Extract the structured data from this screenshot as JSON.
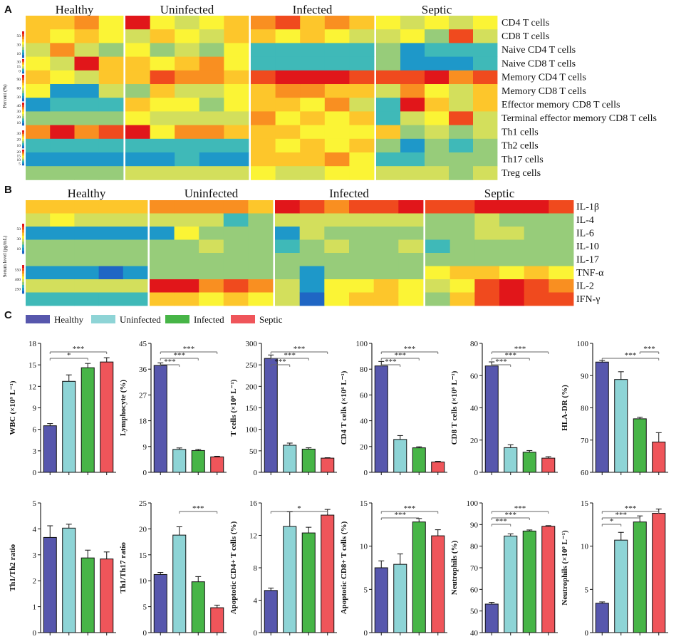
{
  "panels": {
    "a": "A",
    "b": "B",
    "c": "C"
  },
  "colors": {
    "healthy": "#5757ad",
    "uninfected": "#8ed4d6",
    "infected": "#47b547",
    "septic": "#ef555a"
  },
  "legend": [
    "Healthy",
    "Uninfected",
    "Infected",
    "Septic"
  ],
  "heatmap_palette": [
    "#1f66c4",
    "#1e98c9",
    "#3fb9b8",
    "#97cc7a",
    "#d3df5c",
    "#fbf435",
    "#fdc62b",
    "#f98f21",
    "#f04a1e",
    "#e1161a"
  ],
  "heatmap_a": {
    "groups": [
      "Healthy",
      "Uninfected",
      "Infected",
      "Septic"
    ],
    "rows": [
      "CD4 T cells",
      "CD8 T cells",
      "Naive CD4 T cells",
      "Naive CD8 T cells",
      "Memory CD4 T cells",
      "Memory CD8 T cells",
      "Effector memory CD8 T cells",
      "Terminal effector memory CD8 T cells",
      "Th1 cells",
      "Th2 cells",
      "Th17 cells",
      "Treg cells"
    ],
    "scale_title": "Percent (%)",
    "scale_ticks": [
      [
        "50",
        "30",
        "10"
      ],
      [
        "30",
        "15",
        "0"
      ],
      [
        "90",
        "60",
        "30"
      ],
      [
        "40",
        "30",
        "20",
        "10"
      ],
      [
        "30",
        "20",
        "10"
      ],
      [
        "20",
        "15",
        "10",
        "5"
      ]
    ],
    "values": [
      [
        6,
        6,
        7,
        5,
        9,
        5,
        4,
        5,
        6,
        7,
        8,
        6,
        7,
        6,
        5,
        4,
        5,
        4,
        5
      ],
      [
        6,
        5,
        6,
        5,
        4,
        6,
        5,
        4,
        6,
        6,
        5,
        6,
        5,
        4,
        4,
        5,
        3,
        8,
        4
      ],
      [
        4,
        7,
        4,
        3,
        5,
        3,
        4,
        3,
        5,
        2,
        2,
        2,
        2,
        2,
        3,
        1,
        2,
        2,
        2
      ],
      [
        5,
        4,
        9,
        6,
        6,
        5,
        6,
        7,
        5,
        2,
        2,
        2,
        2,
        2,
        3,
        1,
        1,
        1,
        2
      ],
      [
        6,
        5,
        4,
        6,
        6,
        8,
        7,
        7,
        6,
        8,
        9,
        9,
        9,
        8,
        8,
        8,
        9,
        7,
        8
      ],
      [
        5,
        1,
        1,
        4,
        3,
        6,
        4,
        4,
        5,
        6,
        7,
        7,
        6,
        6,
        4,
        7,
        5,
        4,
        6
      ],
      [
        1,
        2,
        2,
        2,
        6,
        5,
        5,
        3,
        5,
        6,
        6,
        5,
        7,
        4,
        2,
        9,
        6,
        4,
        6
      ],
      [
        3,
        3,
        3,
        3,
        5,
        4,
        4,
        4,
        4,
        7,
        5,
        6,
        5,
        6,
        2,
        4,
        5,
        8,
        4
      ],
      [
        7,
        9,
        7,
        8,
        9,
        5,
        7,
        7,
        6,
        6,
        6,
        5,
        5,
        5,
        6,
        3,
        4,
        3,
        4
      ],
      [
        2,
        2,
        2,
        2,
        2,
        2,
        2,
        2,
        2,
        6,
        5,
        6,
        5,
        6,
        3,
        1,
        3,
        2,
        3
      ],
      [
        1,
        1,
        1,
        1,
        1,
        1,
        2,
        1,
        1,
        6,
        6,
        6,
        7,
        5,
        2,
        2,
        3,
        3,
        3
      ],
      [
        3,
        3,
        3,
        3,
        4,
        4,
        4,
        4,
        4,
        5,
        4,
        4,
        5,
        5,
        4,
        4,
        4,
        3,
        4
      ]
    ]
  },
  "heatmap_b": {
    "groups": [
      "Healthy",
      "Uninfected",
      "Infected",
      "Septic"
    ],
    "rows": [
      "IL-1β",
      "IL-4",
      "IL-6",
      "IL-10",
      "IL-17",
      "TNF-α",
      "IL-2",
      "IFN-γ"
    ],
    "scale_title": "Serum level (pg/mL)",
    "scale_ticks": [
      [
        "50",
        "30",
        "10"
      ],
      [
        "550",
        "400",
        "250"
      ]
    ],
    "values": [
      [
        6,
        6,
        6,
        6,
        6,
        7,
        7,
        7,
        7,
        6,
        9,
        8,
        7,
        8,
        8,
        9,
        8,
        8,
        9,
        9,
        9,
        8
      ],
      [
        4,
        5,
        4,
        4,
        4,
        4,
        4,
        4,
        2,
        3,
        4,
        4,
        4,
        4,
        4,
        4,
        3,
        3,
        4,
        3,
        3,
        3
      ],
      [
        1,
        1,
        1,
        1,
        1,
        1,
        5,
        3,
        3,
        3,
        1,
        4,
        3,
        3,
        3,
        3,
        3,
        3,
        4,
        4,
        3,
        3
      ],
      [
        3,
        3,
        3,
        3,
        3,
        3,
        3,
        4,
        3,
        3,
        2,
        3,
        4,
        3,
        3,
        4,
        2,
        3,
        3,
        3,
        3,
        3
      ],
      [
        3,
        3,
        3,
        3,
        3,
        3,
        3,
        3,
        3,
        3,
        3,
        3,
        3,
        3,
        3,
        3,
        3,
        3,
        3,
        3,
        3,
        3
      ],
      [
        1,
        1,
        1,
        0,
        1,
        3,
        3,
        3,
        3,
        3,
        3,
        1,
        3,
        3,
        3,
        3,
        5,
        6,
        6,
        5,
        6,
        5
      ],
      [
        4,
        4,
        4,
        4,
        4,
        9,
        9,
        7,
        8,
        7,
        4,
        1,
        5,
        5,
        6,
        5,
        4,
        5,
        8,
        9,
        8,
        7
      ],
      [
        2,
        2,
        2,
        2,
        2,
        6,
        6,
        5,
        6,
        5,
        4,
        0,
        5,
        6,
        6,
        5,
        3,
        6,
        8,
        9,
        8,
        8
      ]
    ]
  },
  "chart_data": [
    {
      "type": "bar",
      "ylabel": "WBC (×10⁹ L⁻¹)",
      "ylim": [
        0,
        18
      ],
      "yticks": [
        "0",
        "3",
        "6",
        "9",
        "12",
        "15",
        "18"
      ],
      "categories": [
        "Healthy",
        "Uninfected",
        "Infected",
        "Septic"
      ],
      "values": [
        6.5,
        12.7,
        14.6,
        15.4
      ],
      "errors": [
        0.3,
        0.9,
        0.6,
        0.6
      ],
      "sig": [
        {
          "a": 0,
          "b": 2,
          "label": "*"
        },
        {
          "a": 0,
          "b": 3,
          "label": "***"
        }
      ]
    },
    {
      "type": "bar",
      "ylabel": "Lymphocyte (%)",
      "ylim": [
        0,
        45
      ],
      "yticks": [
        "0",
        "9",
        "18",
        "27",
        "36",
        "45"
      ],
      "categories": [
        "Healthy",
        "Uninfected",
        "Infected",
        "Septic"
      ],
      "values": [
        37.3,
        8.0,
        7.6,
        5.4
      ],
      "errors": [
        0.9,
        0.5,
        0.4,
        0.2
      ],
      "sig": [
        {
          "a": 0,
          "b": 1,
          "label": "***"
        },
        {
          "a": 0,
          "b": 2,
          "label": "***"
        },
        {
          "a": 0,
          "b": 3,
          "label": "***"
        }
      ]
    },
    {
      "type": "bar",
      "ylabel": "T cells (×10⁶ L⁻¹)",
      "ylim": [
        0,
        300
      ],
      "yticks": [
        "0",
        "50",
        "100",
        "150",
        "200",
        "250",
        "300"
      ],
      "categories": [
        "Healthy",
        "Uninfected",
        "Infected",
        "Septic"
      ],
      "values": [
        265,
        63,
        54,
        33
      ],
      "errors": [
        8,
        5,
        3,
        1
      ],
      "sig": [
        {
          "a": 0,
          "b": 1,
          "label": "***"
        },
        {
          "a": 0,
          "b": 2,
          "label": "***"
        },
        {
          "a": 0,
          "b": 3,
          "label": "***"
        }
      ]
    },
    {
      "type": "bar",
      "ylabel": "CD4 T cells (×10⁶ L⁻¹)",
      "ylim": [
        0,
        100
      ],
      "yticks": [
        "0",
        "20",
        "40",
        "60",
        "80",
        "100"
      ],
      "categories": [
        "Healthy",
        "Uninfected",
        "Infected",
        "Septic"
      ],
      "values": [
        82.5,
        25.5,
        19.0,
        8.0
      ],
      "errors": [
        3.5,
        3.0,
        0.8,
        0.5
      ],
      "sig": [
        {
          "a": 0,
          "b": 1,
          "label": "***"
        },
        {
          "a": 0,
          "b": 2,
          "label": "***"
        },
        {
          "a": 0,
          "b": 3,
          "label": "***"
        }
      ]
    },
    {
      "type": "bar",
      "ylabel": "CD8 T cells (×10⁶ L⁻¹)",
      "ylim": [
        0,
        80
      ],
      "yticks": [
        "0",
        "20",
        "40",
        "60",
        "80"
      ],
      "categories": [
        "Healthy",
        "Uninfected",
        "Infected",
        "Septic"
      ],
      "values": [
        66,
        15.3,
        12.5,
        8.8
      ],
      "errors": [
        2.5,
        1.8,
        1.0,
        0.9
      ],
      "sig": [
        {
          "a": 0,
          "b": 1,
          "label": "***"
        },
        {
          "a": 0,
          "b": 2,
          "label": "***"
        },
        {
          "a": 0,
          "b": 3,
          "label": "***"
        }
      ]
    },
    {
      "type": "bar",
      "ylabel": "HLA-DR (%)",
      "ylim": [
        60,
        100
      ],
      "yticks": [
        "60",
        "70",
        "80",
        "90",
        "100"
      ],
      "categories": [
        "Healthy",
        "Uninfected",
        "Infected",
        "Septic"
      ],
      "values": [
        94.2,
        88.8,
        76.6,
        69.4
      ],
      "errors": [
        0.5,
        2.4,
        0.5,
        2.9
      ],
      "sig": [
        {
          "a": 0,
          "b": 3,
          "label": "***"
        },
        {
          "a": 2,
          "b": 3,
          "label": "***"
        }
      ]
    },
    {
      "type": "bar",
      "ylabel": "Th1/Th2 ratio",
      "ylim": [
        0,
        5
      ],
      "yticks": [
        "0",
        "1",
        "2",
        "3",
        "4",
        "5"
      ],
      "categories": [
        "Healthy",
        "Uninfected",
        "Infected",
        "Septic"
      ],
      "values": [
        3.67,
        4.03,
        2.88,
        2.84
      ],
      "errors": [
        0.45,
        0.15,
        0.3,
        0.27
      ],
      "sig": []
    },
    {
      "type": "bar",
      "ylabel": "Th1/Th17 ratio",
      "ylim": [
        0,
        25
      ],
      "yticks": [
        "0",
        "5",
        "10",
        "15",
        "20",
        "25"
      ],
      "categories": [
        "Healthy",
        "Uninfected",
        "Infected",
        "Septic"
      ],
      "values": [
        11.2,
        18.8,
        9.8,
        4.8
      ],
      "errors": [
        0.4,
        1.6,
        1.0,
        0.5
      ],
      "sig": [
        {
          "a": 1,
          "b": 3,
          "label": "***"
        }
      ]
    },
    {
      "type": "bar",
      "ylabel": "Apoptotic CD4+ T cells (%)",
      "ylim": [
        0,
        16
      ],
      "yticks": [
        "0",
        "4",
        "8",
        "12",
        "16"
      ],
      "categories": [
        "Healthy",
        "Uninfected",
        "Infected",
        "Septic"
      ],
      "values": [
        5.2,
        13.1,
        12.3,
        14.5
      ],
      "errors": [
        0.3,
        1.8,
        0.7,
        0.7
      ],
      "sig": [
        {
          "a": 0,
          "b": 3,
          "label": "*"
        }
      ]
    },
    {
      "type": "bar",
      "ylabel": "Apoptotic CD8+ T cells (%)",
      "ylim": [
        0,
        15
      ],
      "yticks": [
        "0",
        "5",
        "10",
        "15"
      ],
      "categories": [
        "Healthy",
        "Uninfected",
        "Infected",
        "Septic"
      ],
      "values": [
        7.5,
        7.9,
        12.8,
        11.2
      ],
      "errors": [
        0.8,
        1.2,
        0.4,
        0.7
      ],
      "sig": [
        {
          "a": 0,
          "b": 2,
          "label": "***"
        },
        {
          "a": 0,
          "b": 3,
          "label": "***"
        }
      ]
    },
    {
      "type": "bar",
      "ylabel": "Neutrophils (%)",
      "ylim": [
        40,
        100
      ],
      "yticks": [
        "40",
        "50",
        "60",
        "70",
        "80",
        "90",
        "100"
      ],
      "categories": [
        "Healthy",
        "Uninfected",
        "Infected",
        "Septic"
      ],
      "values": [
        53.2,
        84.7,
        87.0,
        89.2
      ],
      "errors": [
        0.8,
        1.0,
        0.5,
        0.3
      ],
      "sig": [
        {
          "a": 0,
          "b": 1,
          "label": "***"
        },
        {
          "a": 0,
          "b": 2,
          "label": "***"
        },
        {
          "a": 0,
          "b": 3,
          "label": "***"
        }
      ]
    },
    {
      "type": "bar",
      "ylabel": "Neutrophils (×10⁹ L⁻¹)",
      "ylim": [
        0,
        15
      ],
      "yticks": [
        "0",
        "5",
        "10",
        "15"
      ],
      "categories": [
        "Healthy",
        "Uninfected",
        "Infected",
        "Septic"
      ],
      "values": [
        3.4,
        10.7,
        12.8,
        13.8
      ],
      "errors": [
        0.15,
        0.9,
        0.7,
        0.5
      ],
      "sig": [
        {
          "a": 0,
          "b": 1,
          "label": "*"
        },
        {
          "a": 0,
          "b": 2,
          "label": "***"
        },
        {
          "a": 0,
          "b": 3,
          "label": "***"
        }
      ]
    }
  ]
}
